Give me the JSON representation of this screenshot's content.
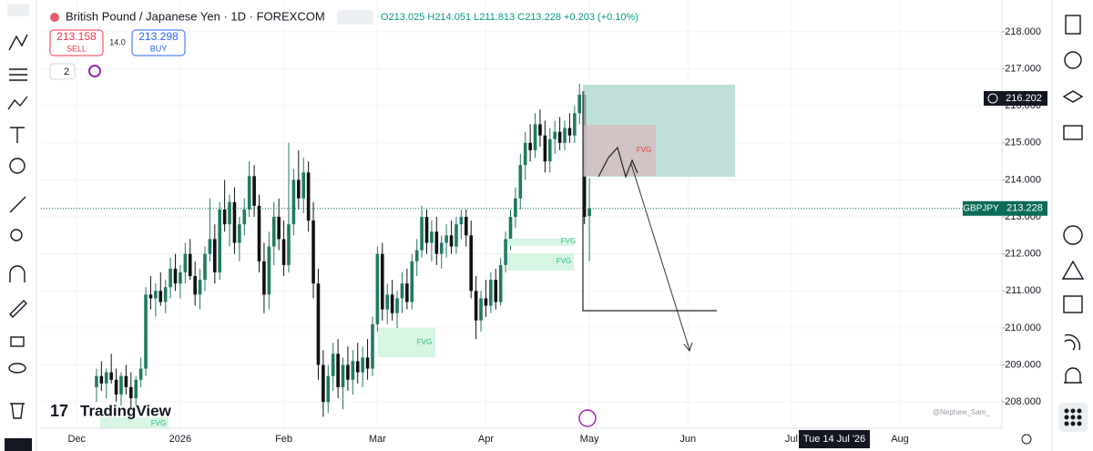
{
  "header": {
    "symbol": "British Pound / Japanese Yen · 1D · FOREXCOM",
    "ohlc": "O213.025 H214.051 L211.813 C213.228 +0.203 (+0.10%)"
  },
  "trade": {
    "sell_price": "213.158",
    "sell": "SELL",
    "spread": "14.0",
    "buy_price": "213.298",
    "buy": "BUY"
  },
  "indicator_count": "2",
  "crosshair_date": "Tue 14 Jul '26",
  "watermark": "@Nephew_Sam_",
  "logo": "TradingView",
  "chart_data": {
    "type": "candlestick",
    "symbol_tag": "GBPJPY",
    "last_price": 213.228,
    "marker_price": 216.202,
    "up_color": "#1f7a63",
    "down_color": "#111111",
    "xlim": [
      -7.26,
      187.7
    ],
    "ylim": [
      207.29,
      218.86
    ],
    "xticks": [
      {
        "value": 0,
        "label": "Dec"
      },
      {
        "value": 21,
        "label": "2026"
      },
      {
        "value": 42,
        "label": "Feb"
      },
      {
        "value": 61,
        "label": "Mar"
      },
      {
        "value": 83,
        "label": "Apr"
      },
      {
        "value": 104,
        "label": "May"
      },
      {
        "value": 124,
        "label": "Jun"
      },
      {
        "value": 145,
        "label": "Jul"
      },
      {
        "value": 167,
        "label": "Aug"
      }
    ],
    "yticks": [
      {
        "value": 208,
        "label": "208.000"
      },
      {
        "value": 209,
        "label": "209.000"
      },
      {
        "value": 210,
        "label": "210.000"
      },
      {
        "value": 211,
        "label": "211.000"
      },
      {
        "value": 212,
        "label": "212.000"
      },
      {
        "value": 213,
        "label": "213.000"
      },
      {
        "value": 214,
        "label": "214.000"
      },
      {
        "value": 215,
        "label": "215.000"
      },
      {
        "value": 216,
        "label": "216.000"
      },
      {
        "value": 217,
        "label": "217.000"
      },
      {
        "value": 218,
        "label": "218.000"
      }
    ],
    "grid": true,
    "annotations": [
      "FVG",
      "FVG",
      "FVG",
      "FVG",
      "FVG"
    ],
    "x": [
      4,
      5,
      6,
      7,
      8,
      9,
      10,
      11,
      12,
      13,
      14,
      15,
      16,
      17,
      18,
      19,
      20,
      21,
      22,
      23,
      24,
      25,
      26,
      27,
      28,
      29,
      30,
      31,
      32,
      33,
      34,
      35,
      36,
      37,
      38,
      39,
      40,
      41,
      42,
      43,
      44,
      45,
      46,
      47,
      48,
      49,
      50,
      51,
      52,
      53,
      54,
      55,
      56,
      57,
      58,
      59,
      60,
      61,
      62,
      63,
      64,
      65,
      66,
      67,
      68,
      69,
      70,
      71,
      72,
      73,
      74,
      75,
      76,
      77,
      78,
      79,
      80,
      81,
      82,
      83,
      84,
      85,
      86,
      87,
      88,
      89,
      90,
      91,
      92,
      93,
      94,
      95,
      96,
      97,
      98,
      99,
      100,
      101,
      102,
      103,
      104
    ],
    "open": [
      208.4,
      208.7,
      208.5,
      208.8,
      208.6,
      208.2,
      208.7,
      208.4,
      208.1,
      208.6,
      208.9,
      210.9,
      210.8,
      211.0,
      210.7,
      211.1,
      211.6,
      211.2,
      211.5,
      212.0,
      211.4,
      210.9,
      211.3,
      212.0,
      212.4,
      211.5,
      213.2,
      212.8,
      213.4,
      212.3,
      212.8,
      213.2,
      214.1,
      213.3,
      211.8,
      210.9,
      212.2,
      213.0,
      212.4,
      211.7,
      212.8,
      214.0,
      213.5,
      214.2,
      212.9,
      211.2,
      209.0,
      208.0,
      208.7,
      209.3,
      208.4,
      209.0,
      208.6,
      209.1,
      208.8,
      209.2,
      208.9,
      210.1,
      212.0,
      210.5,
      210.9,
      210.4,
      210.8,
      211.2,
      210.7,
      211.8,
      212.1,
      213.0,
      212.3,
      212.6,
      212.0,
      212.3,
      212.5,
      212.2,
      212.8,
      213.0,
      212.5,
      211.0,
      210.2,
      210.8,
      210.6,
      211.3,
      210.7,
      211.7,
      212.4,
      213.0,
      213.5,
      214.4,
      215.0,
      214.8,
      215.5,
      215.2,
      214.5,
      215.1,
      215.3,
      215.0,
      215.4,
      215.2,
      215.8,
      216.3,
      213.025
    ],
    "high": [
      208.9,
      209.1,
      208.9,
      209.3,
      208.9,
      208.8,
      209.0,
      208.8,
      208.7,
      209.2,
      211.1,
      211.4,
      211.2,
      211.5,
      211.3,
      211.9,
      212.0,
      211.7,
      212.3,
      212.4,
      211.8,
      211.6,
      212.2,
      213.5,
      212.8,
      213.4,
      214.0,
      213.6,
      213.8,
      213.0,
      213.5,
      214.5,
      214.4,
      213.6,
      212.3,
      212.6,
      213.4,
      213.5,
      212.9,
      215.0,
      214.3,
      214.8,
      214.6,
      214.5,
      213.4,
      211.6,
      209.4,
      209.0,
      209.6,
      209.7,
      209.2,
      209.5,
      209.4,
      209.6,
      209.5,
      209.7,
      210.3,
      212.2,
      212.3,
      211.2,
      211.3,
      211.0,
      211.5,
      211.6,
      212.0,
      212.4,
      213.3,
      213.2,
      212.9,
      213.0,
      212.5,
      212.8,
      212.9,
      213.0,
      213.2,
      213.2,
      212.9,
      211.4,
      211.0,
      211.3,
      211.5,
      211.6,
      211.9,
      212.6,
      213.2,
      213.8,
      214.7,
      215.3,
      215.5,
      215.8,
      215.9,
      215.6,
      215.4,
      215.6,
      215.7,
      215.6,
      215.8,
      216.0,
      216.6,
      216.4,
      214.051
    ],
    "low": [
      208.0,
      208.3,
      208.1,
      208.5,
      208.0,
      207.9,
      208.2,
      207.8,
      207.9,
      208.4,
      208.7,
      210.5,
      210.3,
      210.6,
      210.4,
      210.8,
      211.0,
      210.8,
      211.2,
      211.3,
      210.6,
      210.5,
      211.0,
      211.8,
      211.2,
      211.3,
      212.6,
      212.2,
      212.0,
      211.8,
      212.5,
      213.0,
      213.0,
      211.5,
      210.4,
      210.5,
      211.7,
      212.1,
      211.4,
      211.5,
      212.5,
      213.2,
      213.1,
      212.6,
      210.8,
      208.6,
      207.6,
      207.7,
      208.3,
      208.1,
      207.8,
      208.3,
      208.2,
      208.5,
      208.4,
      208.6,
      208.7,
      209.9,
      210.2,
      210.1,
      210.2,
      209.9,
      210.4,
      210.5,
      210.5,
      211.4,
      211.9,
      212.0,
      211.8,
      211.7,
      211.6,
      211.9,
      212.0,
      212.0,
      212.4,
      212.2,
      210.8,
      209.7,
      209.9,
      210.3,
      210.4,
      210.5,
      210.6,
      211.5,
      212.1,
      212.7,
      213.2,
      214.0,
      214.5,
      214.6,
      214.9,
      214.2,
      214.2,
      214.7,
      214.8,
      214.8,
      215.0,
      215.0,
      215.5,
      212.8,
      211.813
    ],
    "close": [
      208.7,
      208.5,
      208.8,
      208.6,
      208.2,
      208.7,
      208.4,
      208.1,
      208.6,
      208.9,
      210.9,
      210.8,
      211.0,
      210.7,
      211.1,
      211.6,
      211.2,
      211.5,
      212.0,
      211.4,
      210.9,
      211.3,
      212.0,
      212.4,
      211.5,
      213.2,
      212.8,
      213.4,
      212.3,
      212.8,
      213.2,
      214.1,
      213.3,
      211.8,
      210.9,
      212.2,
      213.0,
      212.4,
      211.7,
      212.8,
      214.0,
      213.5,
      214.2,
      212.9,
      211.2,
      209.0,
      208.0,
      208.7,
      209.3,
      208.4,
      209.0,
      208.6,
      209.1,
      208.8,
      209.2,
      208.9,
      210.1,
      212.0,
      210.5,
      210.9,
      210.4,
      210.8,
      211.2,
      210.7,
      211.8,
      212.1,
      213.0,
      212.3,
      212.6,
      212.0,
      212.3,
      212.5,
      212.2,
      212.8,
      213.0,
      212.5,
      211.0,
      210.2,
      210.8,
      210.6,
      211.3,
      210.7,
      211.7,
      212.4,
      213.0,
      213.5,
      214.4,
      215.0,
      214.8,
      215.5,
      215.2,
      214.5,
      215.1,
      215.3,
      215.0,
      215.4,
      215.2,
      215.8,
      216.3,
      213.0,
      213.228
    ]
  }
}
